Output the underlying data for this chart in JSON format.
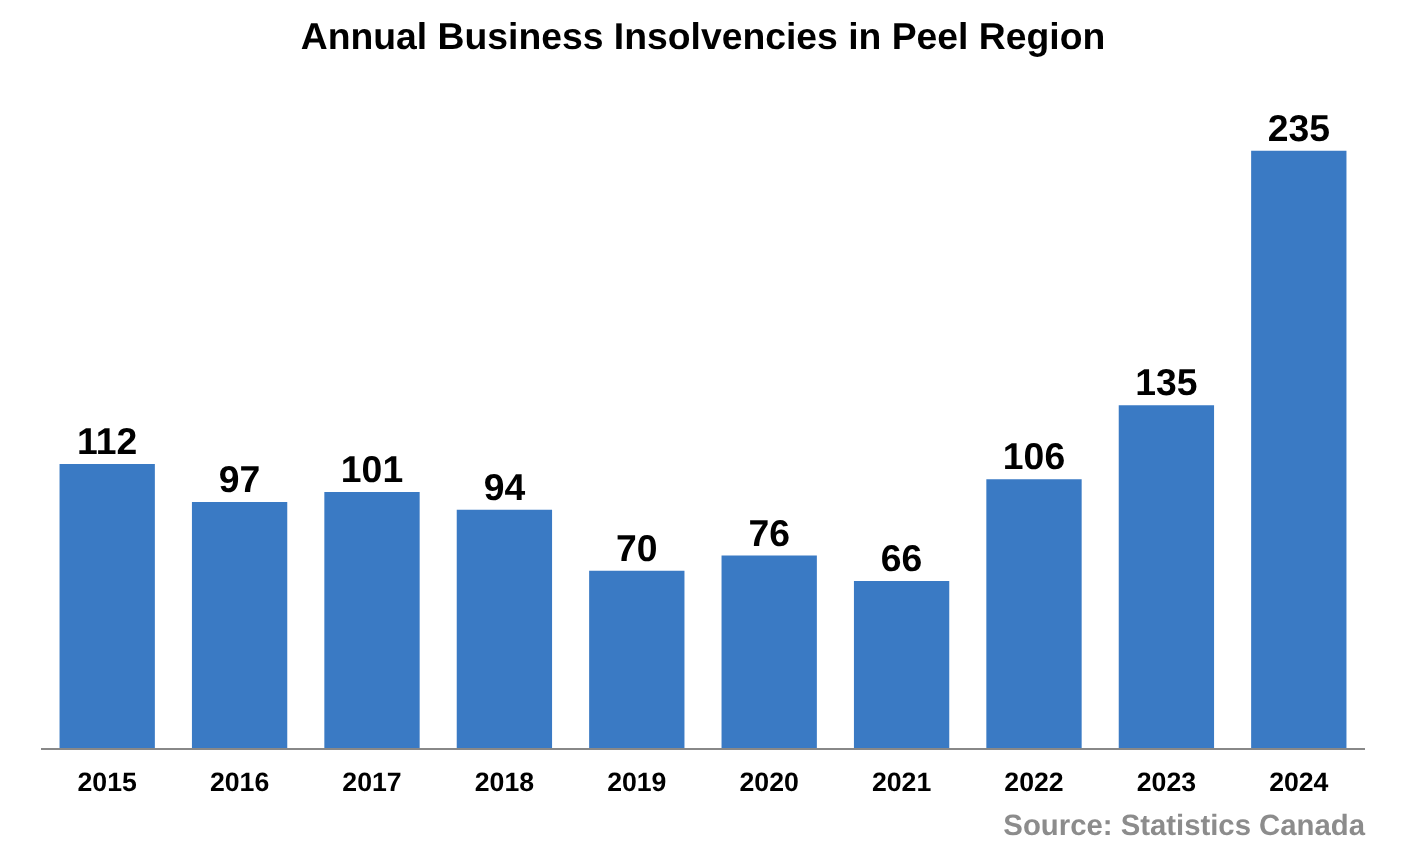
{
  "chart_data": {
    "type": "bar",
    "title": "Annual Business Insolvencies in Peel Region",
    "categories": [
      "2015",
      "2016",
      "2017",
      "2018",
      "2019",
      "2020",
      "2021",
      "2022",
      "2023",
      "2024"
    ],
    "values": [
      112,
      97,
      101,
      94,
      70,
      76,
      66,
      106,
      135,
      235
    ],
    "color": "#3a7ac4",
    "data_labels": true,
    "grid": false,
    "annotations": [
      "Source: Statistics Canada"
    ]
  }
}
